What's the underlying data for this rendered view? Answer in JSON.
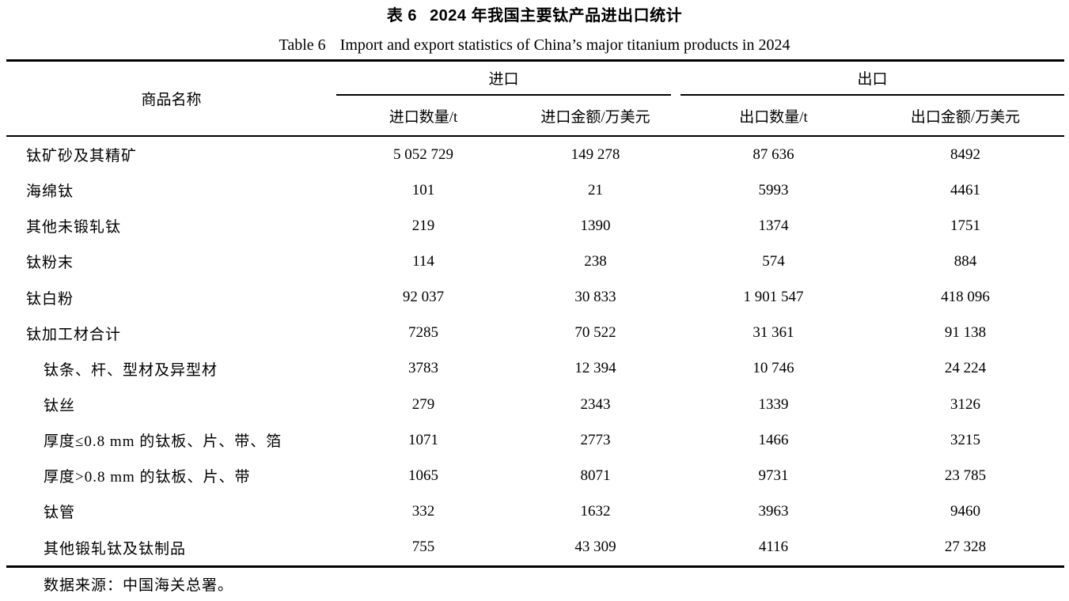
{
  "caption": {
    "zh_label": "表 6",
    "zh_text": "2024 年我国主要钛产品进出口统计",
    "en_label": "Table 6",
    "en_text": "Import and export statistics of China’s major titanium products in 2024"
  },
  "table": {
    "headers": {
      "product": "商品名称",
      "import_group": "进口",
      "export_group": "出口",
      "import_qty": "进口数量/t",
      "import_value": "进口金额/万美元",
      "export_qty": "出口数量/t",
      "export_value": "出口金额/万美元"
    },
    "rows": [
      {
        "name": "钛矿砂及其精矿",
        "indent": 0,
        "import_qty": "5 052 729",
        "import_value": "149 278",
        "export_qty": "87 636",
        "export_value": "8492"
      },
      {
        "name": "海绵钛",
        "indent": 0,
        "import_qty": "101",
        "import_value": "21",
        "export_qty": "5993",
        "export_value": "4461"
      },
      {
        "name": "其他未锻轧钛",
        "indent": 0,
        "import_qty": "219",
        "import_value": "1390",
        "export_qty": "1374",
        "export_value": "1751"
      },
      {
        "name": "钛粉末",
        "indent": 0,
        "import_qty": "114",
        "import_value": "238",
        "export_qty": "574",
        "export_value": "884"
      },
      {
        "name": "钛白粉",
        "indent": 0,
        "import_qty": "92 037",
        "import_value": "30 833",
        "export_qty": "1 901 547",
        "export_value": "418 096"
      },
      {
        "name": "钛加工材合计",
        "indent": 0,
        "import_qty": "7285",
        "import_value": "70 522",
        "export_qty": "31 361",
        "export_value": "91 138"
      },
      {
        "name": "钛条、杆、型材及异型材",
        "indent": 1,
        "import_qty": "3783",
        "import_value": "12 394",
        "export_qty": "10 746",
        "export_value": "24 224"
      },
      {
        "name": "钛丝",
        "indent": 1,
        "import_qty": "279",
        "import_value": "2343",
        "export_qty": "1339",
        "export_value": "3126"
      },
      {
        "name": "厚度≤0.8 mm 的钛板、片、带、箔",
        "indent": 1,
        "import_qty": "1071",
        "import_value": "2773",
        "export_qty": "1466",
        "export_value": "3215"
      },
      {
        "name": "厚度>0.8 mm 的钛板、片、带",
        "indent": 1,
        "import_qty": "1065",
        "import_value": "8071",
        "export_qty": "9731",
        "export_value": "23 785"
      },
      {
        "name": "钛管",
        "indent": 1,
        "import_qty": "332",
        "import_value": "1632",
        "export_qty": "3963",
        "export_value": "9460"
      },
      {
        "name": "其他锻轧钛及钛制品",
        "indent": 1,
        "import_qty": "755",
        "import_value": "43 309",
        "export_qty": "4116",
        "export_value": "27 328"
      }
    ]
  },
  "source_note": "数据来源：中国海关总署。"
}
